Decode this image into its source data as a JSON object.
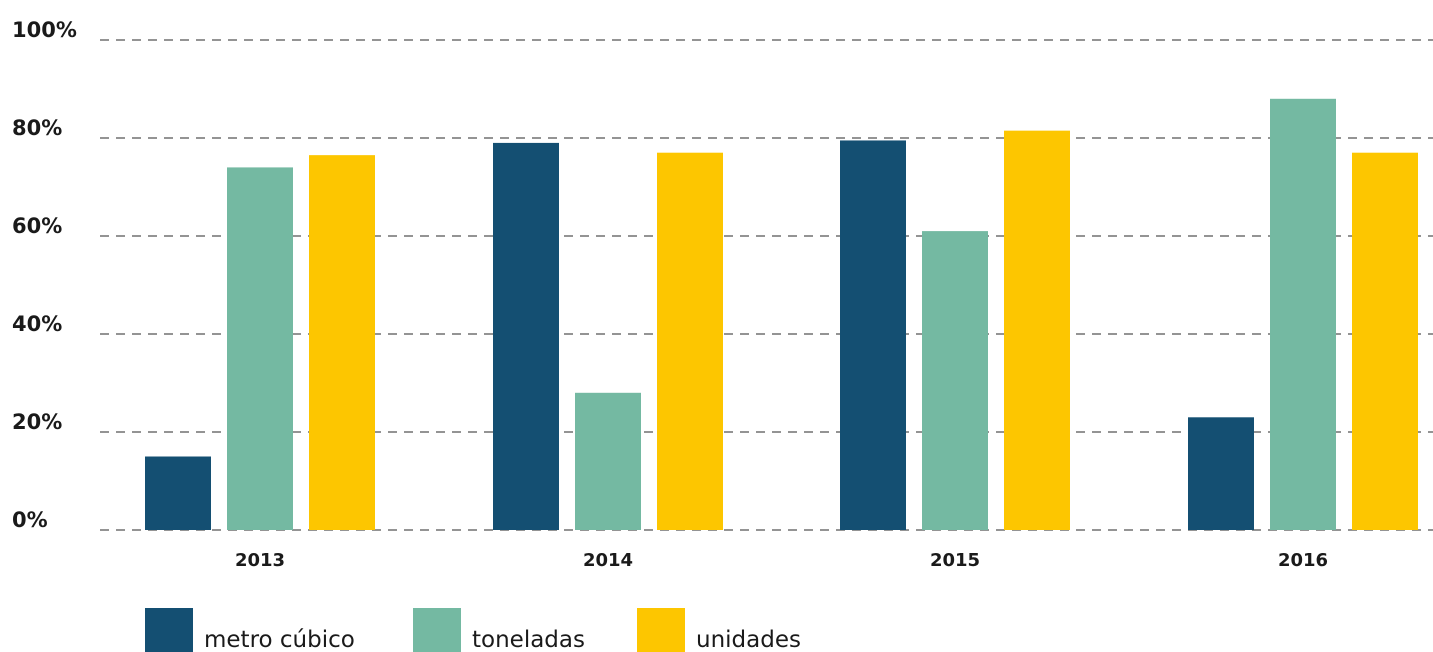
{
  "chart_data": {
    "type": "bar",
    "categories": [
      "2013",
      "2014",
      "2015",
      "2016"
    ],
    "series": [
      {
        "name": "metro cúbico",
        "color": "#144f72",
        "values": [
          15,
          79,
          79.5,
          23
        ]
      },
      {
        "name": "toneladas",
        "color": "#74b9a2",
        "values": [
          74,
          28,
          61,
          88
        ]
      },
      {
        "name": "unidades",
        "color": "#fdc600",
        "values": [
          76.5,
          77,
          81.5,
          77
        ]
      }
    ],
    "ylim": [
      0,
      100
    ],
    "yticks": [
      0,
      20,
      40,
      60,
      80,
      100
    ],
    "ytick_labels": [
      "0%",
      "20%",
      "40%",
      "60%",
      "80%",
      "100%"
    ],
    "title": "",
    "xlabel": "",
    "ylabel": "",
    "grid": "horizontal-dashed",
    "legend_position": "bottom-left"
  }
}
